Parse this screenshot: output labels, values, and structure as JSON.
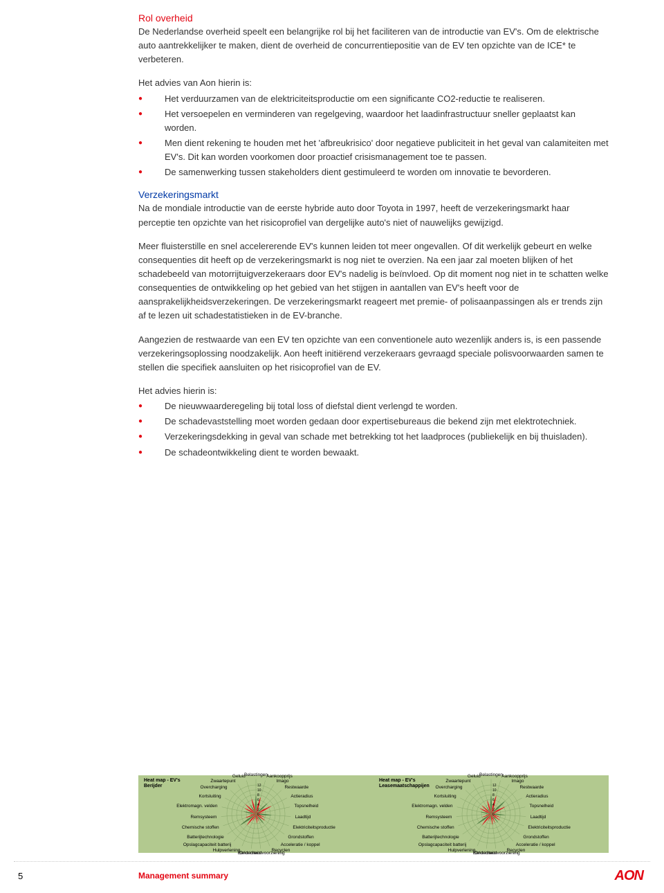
{
  "section1_heading": "Rol overheid",
  "section1_p1": "De Nederlandse overheid speelt een belangrijke rol bij het faciliteren van de introductie van EV's. Om de elektrische auto aantrekkelijker te maken, dient de overheid de concurrentiepositie van de EV ten opzichte van de ICE* te verbeteren.",
  "section1_p2": "Het advies van Aon hierin is:",
  "section1_bullets": [
    "Het verduurzamen van de elektriciteitsproductie om een significante CO2-reductie te realiseren.",
    "Het versoepelen en verminderen van regelgeving, waardoor het laadinfrastructuur sneller geplaatst kan worden.",
    "Men dient rekening te houden met het 'afbreukrisico' door negatieve publiciteit in het geval van calamiteiten met EV's. Dit kan worden voorkomen door proactief crisismanagement toe te passen.",
    "De samenwerking tussen stakeholders dient gestimuleerd te worden om innovatie te bevorderen."
  ],
  "section2_heading": "Verzekeringsmarkt",
  "section2_p1": "Na de mondiale introductie van de eerste hybride auto door Toyota in 1997, heeft de verzekeringsmarkt haar perceptie ten opzichte van het risicoprofiel van dergelijke auto's niet of nauwelijks gewijzigd.",
  "section2_p2": "Meer fluisterstille en snel accelererende EV's kunnen leiden tot meer ongevallen. Of dit werkelijk gebeurt en welke consequenties dit heeft op de verzekeringsmarkt is nog niet te overzien. Na een jaar zal moeten blijken of het schadebeeld van motorrijtuigverzekeraars door EV's nadelig is beïnvloed. Op dit moment nog niet in te schatten welke consequenties de ontwikkeling op het gebied van het stijgen in aantallen van EV's heeft voor de aansprakelijkheidsverzekeringen. De verzekeringsmarkt reageert met premie- of polisaanpassingen als er trends zijn af te lezen uit schadestatistieken in de EV-branche.",
  "section2_p3": "Aangezien de restwaarde van een EV ten opzichte van een conventionele auto wezenlijk anders is, is een passende verzekeringsoplossing noodzakelijk. Aon heeft initiërend verzekeraars gevraagd speciale polisvoorwaarden samen te stellen die specifiek aansluiten op het risicoprofiel van de EV.",
  "section2_p4": "Het advies hierin is:",
  "section2_bullets": [
    "De nieuwwaarderegeling bij total loss of diefstal dient verlengd te worden.",
    "De schadevaststelling moet worden gedaan door expertisebureaus die bekend zijn met elektrotechniek.",
    "Verzekeringsdekking in geval van schade met betrekking tot het laadproces (publiekelijk en bij thuisladen).",
    "De schadeontwikkeling dient te worden bewaakt."
  ],
  "charts": {
    "background": "#b2c98f",
    "petal_fill": "#e30613",
    "petal_fill_alt": "#4a7a3f",
    "grid_color": "#7a9b5e",
    "ring_values": [
      0,
      2,
      4,
      6,
      8,
      10,
      12
    ],
    "left": {
      "title_line1": "Heat map - EV's",
      "title_line2": "Berijder",
      "labels": [
        "Belastingen",
        "Aankoopprijs",
        "Imago",
        "Restwaarde",
        "Actieradius",
        "Topsnelheid",
        "Laadtijd",
        "Elektriciteitsproductie",
        "Grondstoffen",
        "Acceleratie / koppel",
        "Recyclen",
        "Elektriciteitsvoorziening",
        "Onderhoud",
        "Hulpverlening",
        "Opslagcapaciteit batterij",
        "Batterijtechnologie",
        "Chemische stoffen",
        "Remsysteem",
        "Elektromagn. velden",
        "Kortsluiting",
        "Overcharging",
        "Zwaartepunt",
        "Geluid"
      ],
      "values": [
        12,
        11,
        4,
        10,
        11,
        5,
        10,
        6,
        7,
        8,
        5,
        6,
        4,
        5,
        9,
        12,
        7,
        4,
        8,
        8,
        9,
        7,
        10
      ]
    },
    "right": {
      "title_line1": "Heat map - EV's",
      "title_line2": "Leasemaatschappijen",
      "labels": [
        "Belastingen",
        "Aankoopprijs",
        "Imago",
        "Restwaarde",
        "Actieradius",
        "Topsnelheid",
        "Laadtijd",
        "Elektriciteitsproductie",
        "Grondstoffen",
        "Acceleratie / koppel",
        "Recyclen",
        "Elektriciteitsvoorziening",
        "Onderhoud",
        "Hulpverlening",
        "Opslagcapaciteit batterij",
        "Batterijtechnologie",
        "Chemische stoffen",
        "Remsysteem",
        "Elektromagn. velden",
        "Kortsluiting",
        "Overcharging",
        "Zwaartepunt",
        "Geluid"
      ],
      "values": [
        12,
        12,
        5,
        12,
        10,
        4,
        9,
        6,
        7,
        7,
        6,
        7,
        5,
        5,
        9,
        11,
        6,
        3,
        7,
        8,
        8,
        6,
        9
      ]
    }
  },
  "page_number": "5",
  "footer_label": "Management summary",
  "logo_text": "AON"
}
